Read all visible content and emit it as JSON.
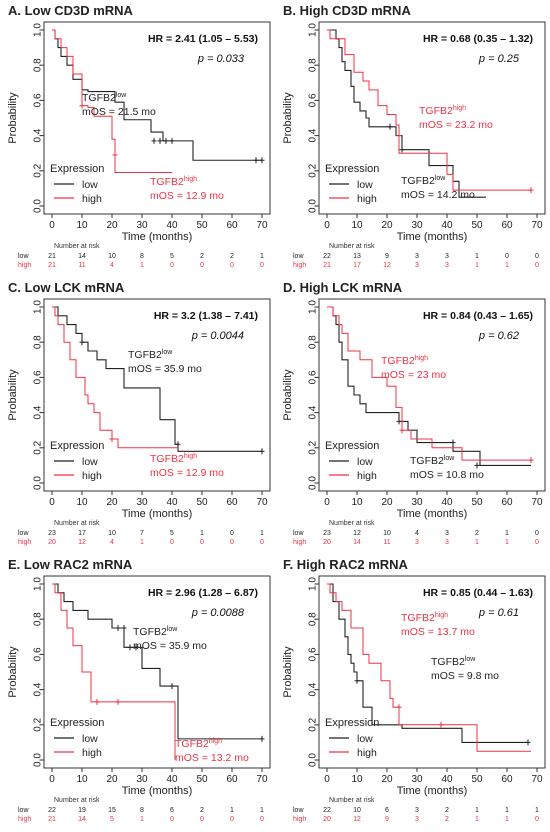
{
  "colors": {
    "low": "#222222",
    "high": "#ee3344"
  },
  "chart_data": [
    {
      "type": "line",
      "title": "A. Low CD3D mRNA",
      "xlabel": "Time (months)",
      "ylabel": "Probability",
      "xlim": [
        0,
        70
      ],
      "ylim": [
        0,
        1
      ],
      "xticks": [
        "0",
        "10",
        "20",
        "30",
        "40",
        "50",
        "60",
        "70"
      ],
      "yticks": [
        "0.0",
        "0.2",
        "0.4",
        "0.6",
        "0.8",
        "1.0"
      ],
      "hr": "HR = 2.41 (1.05 – 5.53)",
      "p": "p = 0.033",
      "legend": {
        "title": "Expression",
        "entries": [
          "low",
          "high"
        ]
      },
      "annotations": {
        "low": {
          "name": "TGFB2",
          "sup": "low",
          "mos": "mOS = 21.5 mo"
        },
        "high": {
          "name": "TGFB2",
          "sup": "high",
          "mos": "mOS = 12.9 mo"
        }
      },
      "series": [
        {
          "name": "low",
          "color": "#222222",
          "x": [
            0,
            1,
            2,
            3,
            5,
            7,
            10,
            12,
            21,
            24,
            30,
            33,
            37,
            47,
            70
          ],
          "y": [
            1,
            0.95,
            0.9,
            0.85,
            0.8,
            0.72,
            0.66,
            0.65,
            0.59,
            0.49,
            0.49,
            0.42,
            0.37,
            0.26,
            0.26
          ],
          "censor": [
            [
              34,
              0.37
            ],
            [
              36,
              0.37
            ],
            [
              38,
              0.37
            ],
            [
              40,
              0.37
            ],
            [
              68,
              0.26
            ],
            [
              70,
              0.26
            ]
          ]
        },
        {
          "name": "high",
          "color": "#ee3344",
          "x": [
            0,
            1,
            3,
            5,
            7,
            10,
            12,
            14,
            20,
            21,
            26,
            40
          ],
          "y": [
            1,
            0.95,
            0.9,
            0.85,
            0.75,
            0.57,
            0.56,
            0.51,
            0.38,
            0.19,
            0.19,
            0.19
          ],
          "censor": [
            [
              10,
              0.57
            ],
            [
              21,
              0.29
            ]
          ]
        }
      ],
      "risk": {
        "label": "Number at risk",
        "x": [
          "0",
          "10",
          "20",
          "30",
          "40",
          "50",
          "60",
          "70"
        ],
        "low": [
          "21",
          "14",
          "10",
          "8",
          "5",
          "2",
          "2",
          "1"
        ],
        "high": [
          "21",
          "11",
          "4",
          "1",
          "0",
          "0",
          "0",
          "0"
        ]
      }
    },
    {
      "type": "line",
      "title": "B. High CD3D mRNA",
      "xlabel": "Time (months)",
      "ylabel": "Probability",
      "xlim": [
        0,
        70
      ],
      "ylim": [
        0,
        1
      ],
      "xticks": [
        "0",
        "10",
        "20",
        "30",
        "40",
        "50",
        "60",
        "70"
      ],
      "yticks": [
        "0.0",
        "0.2",
        "0.4",
        "0.6",
        "0.8",
        "1.0"
      ],
      "hr": "HR = 0.68 (0.35 – 1.32)",
      "p": "p = 0.25",
      "legend": {
        "title": "Expression",
        "entries": [
          "low",
          "high"
        ]
      },
      "annotations": {
        "low": {
          "name": "TGFB2",
          "sup": "low",
          "mos": "mOS = 14.2 mo"
        },
        "high": {
          "name": "TGFB2",
          "sup": "high",
          "mos": "mOS = 23.2 mo"
        }
      },
      "series": [
        {
          "name": "low",
          "color": "#222222",
          "x": [
            0,
            3,
            4,
            5,
            6,
            8,
            9,
            11,
            13,
            14,
            18,
            23,
            25,
            30,
            34,
            42,
            44,
            53
          ],
          "y": [
            1,
            0.95,
            0.9,
            0.82,
            0.77,
            0.68,
            0.59,
            0.54,
            0.5,
            0.45,
            0.45,
            0.4,
            0.32,
            0.32,
            0.23,
            0.14,
            0.05,
            0.05
          ],
          "censor": [
            [
              21,
              0.45
            ],
            [
              25,
              0.32
            ]
          ]
        },
        {
          "name": "high",
          "color": "#ee3344",
          "x": [
            0,
            1,
            6,
            9,
            12,
            14,
            17,
            20,
            23,
            24,
            35,
            40,
            42,
            68
          ],
          "y": [
            1,
            0.95,
            0.86,
            0.76,
            0.71,
            0.66,
            0.57,
            0.52,
            0.46,
            0.3,
            0.3,
            0.18,
            0.09,
            0.09
          ],
          "censor": [
            [
              24,
              0.4
            ],
            [
              68,
              0.09
            ]
          ]
        }
      ],
      "risk": {
        "label": "Number at risk",
        "x": [
          "0",
          "10",
          "20",
          "30",
          "40",
          "50",
          "60",
          "70"
        ],
        "low": [
          "22",
          "13",
          "9",
          "3",
          "3",
          "1",
          "0",
          "0"
        ],
        "high": [
          "21",
          "17",
          "12",
          "3",
          "3",
          "1",
          "1",
          "0"
        ]
      }
    },
    {
      "type": "line",
      "title": "C. Low LCK mRNA",
      "xlabel": "Time (months)",
      "ylabel": "Probability",
      "xlim": [
        0,
        70
      ],
      "ylim": [
        0,
        1
      ],
      "xticks": [
        "0",
        "10",
        "20",
        "30",
        "40",
        "50",
        "60",
        "70"
      ],
      "yticks": [
        "0.0",
        "0.2",
        "0.4",
        "0.6",
        "0.8",
        "1.0"
      ],
      "hr": "HR = 3.2 (1.38 – 7.41)",
      "p": "p = 0.0044",
      "legend": {
        "title": "Expression",
        "entries": [
          "low",
          "high"
        ]
      },
      "annotations": {
        "low": {
          "name": "TGFB2",
          "sup": "low",
          "mos": "mOS = 35.9 mo"
        },
        "high": {
          "name": "TGFB2",
          "sup": "high",
          "mos": "mOS = 12.9 mo"
        }
      },
      "series": [
        {
          "name": "low",
          "color": "#222222",
          "x": [
            0,
            2,
            5,
            8,
            10,
            12,
            15,
            18,
            24,
            36,
            41,
            42,
            70
          ],
          "y": [
            1,
            0.95,
            0.9,
            0.85,
            0.8,
            0.75,
            0.7,
            0.65,
            0.54,
            0.36,
            0.22,
            0.18,
            0.18
          ],
          "censor": [
            [
              10,
              0.8
            ],
            [
              42,
              0.22
            ],
            [
              70,
              0.18
            ]
          ]
        },
        {
          "name": "high",
          "color": "#ee3344",
          "x": [
            0,
            1,
            2,
            4,
            6,
            8,
            11,
            12,
            14,
            16,
            20,
            22,
            42
          ],
          "y": [
            1,
            0.95,
            0.9,
            0.8,
            0.7,
            0.6,
            0.5,
            0.45,
            0.4,
            0.3,
            0.25,
            0.2,
            0.2
          ],
          "censor": [
            [
              20,
              0.25
            ]
          ]
        }
      ],
      "risk": {
        "label": "Number at risk",
        "x": [
          "0",
          "10",
          "20",
          "30",
          "40",
          "50",
          "60",
          "70"
        ],
        "low": [
          "23",
          "17",
          "10",
          "7",
          "5",
          "1",
          "0",
          "1"
        ],
        "high": [
          "20",
          "12",
          "4",
          "1",
          "0",
          "0",
          "0",
          "0"
        ]
      }
    },
    {
      "type": "line",
      "title": "D. High LCK mRNA",
      "xlabel": "Time (months)",
      "ylabel": "Probability",
      "xlim": [
        0,
        70
      ],
      "ylim": [
        0,
        1
      ],
      "xticks": [
        "0",
        "10",
        "20",
        "30",
        "40",
        "50",
        "60",
        "70"
      ],
      "yticks": [
        "0.0",
        "0.2",
        "0.4",
        "0.6",
        "0.8",
        "1.0"
      ],
      "hr": "HR = 0.84 (0.43 – 1.65)",
      "p": "p = 0.62",
      "legend": {
        "title": "Expression",
        "entries": [
          "low",
          "high"
        ]
      },
      "annotations": {
        "low": {
          "name": "TGFB2",
          "sup": "low",
          "mos": "mOS = 10.8 mo"
        },
        "high": {
          "name": "TGFB2",
          "sup": "high",
          "mos": "mOS = 23 mo"
        }
      },
      "series": [
        {
          "name": "low",
          "color": "#222222",
          "x": [
            0,
            2,
            3,
            4,
            5,
            7,
            9,
            11,
            13,
            22,
            24,
            27,
            30,
            42,
            51,
            68
          ],
          "y": [
            1,
            0.95,
            0.9,
            0.8,
            0.7,
            0.55,
            0.5,
            0.45,
            0.4,
            0.4,
            0.35,
            0.3,
            0.23,
            0.18,
            0.1,
            0.1
          ],
          "censor": [
            [
              24,
              0.35
            ],
            [
              42,
              0.23
            ],
            [
              50,
              0.1
            ]
          ]
        },
        {
          "name": "high",
          "color": "#ee3344",
          "x": [
            0,
            2,
            4,
            5,
            7,
            11,
            15,
            20,
            23,
            25,
            28,
            35,
            45,
            68
          ],
          "y": [
            1,
            0.95,
            0.9,
            0.85,
            0.75,
            0.7,
            0.6,
            0.55,
            0.43,
            0.3,
            0.25,
            0.2,
            0.13,
            0.13
          ],
          "censor": [
            [
              25,
              0.3
            ],
            [
              68,
              0.13
            ]
          ]
        }
      ],
      "risk": {
        "label": "Number at risk",
        "x": [
          "0",
          "10",
          "20",
          "30",
          "40",
          "50",
          "60",
          "70"
        ],
        "low": [
          "23",
          "12",
          "10",
          "4",
          "3",
          "2",
          "1",
          "0"
        ],
        "high": [
          "20",
          "14",
          "11",
          "3",
          "3",
          "1",
          "1",
          "0"
        ]
      }
    },
    {
      "type": "line",
      "title": "E. Low RAC2 mRNA",
      "xlabel": "Time (months)",
      "ylabel": "Probability",
      "xlim": [
        0,
        70
      ],
      "ylim": [
        0,
        1
      ],
      "xticks": [
        "0",
        "10",
        "20",
        "30",
        "40",
        "50",
        "60",
        "70"
      ],
      "yticks": [
        "0.0",
        "0.2",
        "0.4",
        "0.6",
        "0.8",
        "1.0"
      ],
      "hr": "HR = 2.96 (1.28 – 6.87)",
      "p": "p = 0.0088",
      "legend": {
        "title": "Expression",
        "entries": [
          "low",
          "high"
        ]
      },
      "annotations": {
        "low": {
          "name": "TGFB2",
          "sup": "low",
          "mos": "mOS = 35.9 mo"
        },
        "high": {
          "name": "TGFB2",
          "sup": "high",
          "mos": "mOS = 13.2 mo"
        }
      },
      "series": [
        {
          "name": "low",
          "color": "#222222",
          "x": [
            0,
            2,
            4,
            7,
            12,
            20,
            24,
            30,
            36,
            42,
            70
          ],
          "y": [
            1,
            0.95,
            0.9,
            0.85,
            0.8,
            0.75,
            0.64,
            0.52,
            0.42,
            0.12,
            0.12
          ],
          "censor": [
            [
              22,
              0.75
            ],
            [
              24,
              0.75
            ],
            [
              26,
              0.64
            ],
            [
              28,
              0.64
            ],
            [
              40,
              0.42
            ],
            [
              70,
              0.12
            ]
          ]
        },
        {
          "name": "high",
          "color": "#ee3344",
          "x": [
            0,
            1,
            3,
            5,
            7,
            10,
            13,
            22,
            40,
            41
          ],
          "y": [
            1,
            0.95,
            0.85,
            0.75,
            0.65,
            0.5,
            0.33,
            0.33,
            0.33,
            0.0
          ],
          "censor": [
            [
              15,
              0.33
            ],
            [
              22,
              0.33
            ]
          ]
        }
      ],
      "risk": {
        "label": "Number at risk",
        "x": [
          "0",
          "10",
          "20",
          "30",
          "40",
          "50",
          "60",
          "70"
        ],
        "low": [
          "22",
          "19",
          "15",
          "8",
          "6",
          "2",
          "1",
          "1"
        ],
        "high": [
          "21",
          "14",
          "5",
          "1",
          "0",
          "0",
          "0",
          "0"
        ]
      }
    },
    {
      "type": "line",
      "title": "F. High RAC2 mRNA",
      "xlabel": "Time (months)",
      "ylabel": "Probability",
      "xlim": [
        0,
        70
      ],
      "ylim": [
        0,
        1
      ],
      "xticks": [
        "0",
        "10",
        "20",
        "30",
        "40",
        "50",
        "60",
        "70"
      ],
      "yticks": [
        "0.0",
        "0.2",
        "0.4",
        "0.6",
        "0.8",
        "1.0"
      ],
      "hr": "HR = 0.85 (0.44 – 1.63)",
      "p": "p = 0.61",
      "legend": {
        "title": "Expression",
        "entries": [
          "low",
          "high"
        ]
      },
      "annotations": {
        "low": {
          "name": "TGFB2",
          "sup": "low",
          "mos": "mOS = 9.8 mo"
        },
        "high": {
          "name": "TGFB2",
          "sup": "high",
          "mos": "mOS = 13.7 mo"
        }
      },
      "series": [
        {
          "name": "low",
          "color": "#222222",
          "x": [
            0,
            2,
            4,
            6,
            7,
            8,
            9,
            10,
            12,
            15,
            25,
            45,
            67
          ],
          "y": [
            1,
            0.9,
            0.8,
            0.7,
            0.6,
            0.55,
            0.5,
            0.45,
            0.3,
            0.2,
            0.18,
            0.1,
            0.1
          ],
          "censor": [
            [
              10,
              0.45
            ],
            [
              67,
              0.1
            ]
          ]
        },
        {
          "name": "high",
          "color": "#ee3344",
          "x": [
            0,
            1,
            3,
            5,
            8,
            12,
            14,
            18,
            21,
            22,
            24,
            40,
            50,
            68
          ],
          "y": [
            1,
            0.95,
            0.9,
            0.85,
            0.75,
            0.6,
            0.55,
            0.45,
            0.35,
            0.3,
            0.2,
            0.2,
            0.05,
            0.05
          ],
          "censor": [
            [
              24,
              0.3
            ],
            [
              38,
              0.2
            ]
          ]
        }
      ],
      "risk": {
        "label": "Number at risk",
        "x": [
          "0",
          "10",
          "20",
          "30",
          "40",
          "50",
          "60",
          "70"
        ],
        "low": [
          "22",
          "10",
          "6",
          "3",
          "2",
          "1",
          "1",
          "1"
        ],
        "high": [
          "20",
          "12",
          "9",
          "3",
          "2",
          "1",
          "1",
          "0"
        ]
      }
    }
  ]
}
